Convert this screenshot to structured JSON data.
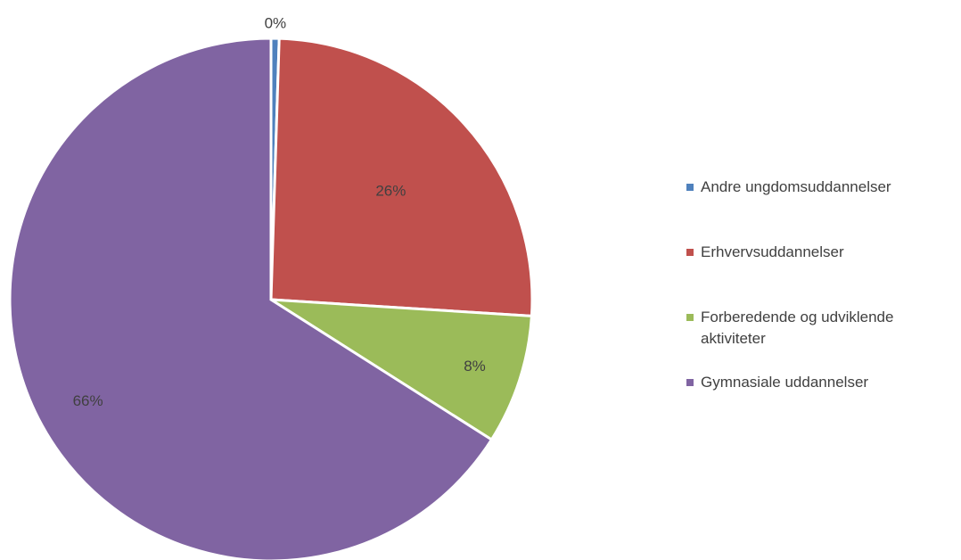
{
  "chart_data": {
    "type": "pie",
    "labels": [
      "Andre ungdomsuddannelser",
      "Erhvervsuddannelser",
      "Forberedende og udviklende aktiviteter",
      "Gymnasiale uddannelser"
    ],
    "values": [
      0.5,
      25.5,
      8,
      66
    ],
    "data_labels": [
      "0%",
      "26%",
      "8%",
      "66%"
    ],
    "colors": [
      "#4f81bd",
      "#c0504d",
      "#9bbb59",
      "#8064a2"
    ],
    "legend_position": "right"
  }
}
